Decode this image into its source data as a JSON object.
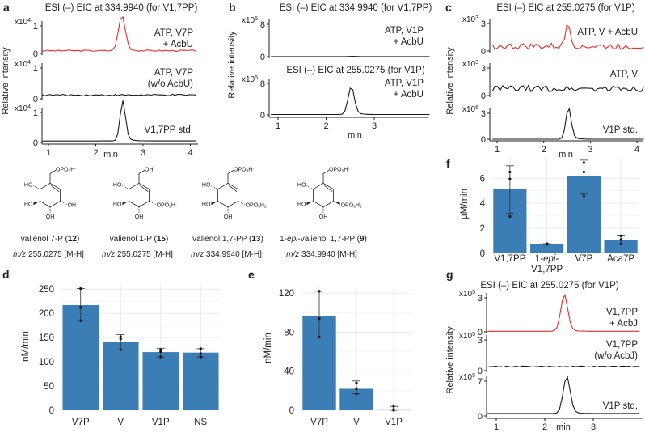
{
  "panel_labels": {
    "a": "a",
    "b": "b",
    "c": "c",
    "d": "d",
    "e": "e",
    "f": "f",
    "g": "g"
  },
  "structures": [
    {
      "name": [
        {
          "t": "valienol 7-P ("
        },
        {
          "t": "12",
          "b": true
        },
        {
          "t": ")"
        }
      ],
      "mz": [
        {
          "t": "m/z",
          "i": true
        },
        {
          "t": " 255.0275 [M-H]"
        },
        {
          "t": "–",
          "sup": true
        }
      ],
      "top": [
        {
          "t": "OPO"
        },
        {
          "t": "3",
          "sub": true
        },
        {
          "t": "H"
        },
        {
          "t": "-",
          "sup": true
        }
      ],
      "ul": [
        {
          "t": "HO"
        }
      ],
      "ll": [
        {
          "t": "HO"
        }
      ],
      "bottom": [
        {
          "t": "OH"
        }
      ],
      "lr": [
        {
          "t": "OH"
        }
      ],
      "lr_wedge": "hash"
    },
    {
      "name": [
        {
          "t": "valienol 1-P ("
        },
        {
          "t": "15",
          "b": true
        },
        {
          "t": ")"
        }
      ],
      "mz": [
        {
          "t": "m/z",
          "i": true
        },
        {
          "t": " 255.0275 [M-H]"
        },
        {
          "t": "–",
          "sup": true
        }
      ],
      "top": [
        {
          "t": "OH"
        }
      ],
      "ul": [
        {
          "t": "HO"
        }
      ],
      "ll": [
        {
          "t": "HO"
        }
      ],
      "bottom": [
        {
          "t": "OH"
        }
      ],
      "lr": [
        {
          "t": "OPO"
        },
        {
          "t": "3",
          "sub": true
        },
        {
          "t": "H"
        },
        {
          "t": "-",
          "sup": true
        }
      ],
      "lr_wedge": "hash"
    },
    {
      "name": [
        {
          "t": "valienol 1,7-PP ("
        },
        {
          "t": "13",
          "b": true
        },
        {
          "t": ")"
        }
      ],
      "mz": [
        {
          "t": "m/z",
          "i": true
        },
        {
          "t": " 334.9940 [M-H]"
        },
        {
          "t": "–",
          "sup": true
        }
      ],
      "top": [
        {
          "t": "OPO"
        },
        {
          "t": "3",
          "sub": true
        },
        {
          "t": "H"
        },
        {
          "t": "-",
          "sup": true
        }
      ],
      "ul": [
        {
          "t": "HO"
        }
      ],
      "ll": [
        {
          "t": "HO"
        }
      ],
      "bottom": [
        {
          "t": "OH"
        }
      ],
      "lr": [
        {
          "t": "OPO"
        },
        {
          "t": "3",
          "sub": true
        },
        {
          "t": "H"
        },
        {
          "t": "2",
          "sub": true
        }
      ],
      "lr_wedge": "hash"
    },
    {
      "name": [
        {
          "t": "1-"
        },
        {
          "t": "epi",
          "i": true
        },
        {
          "t": "-valienol 1,7-PP ("
        },
        {
          "t": "9",
          "b": true
        },
        {
          "t": ")"
        }
      ],
      "mz": [
        {
          "t": "m/z",
          "i": true
        },
        {
          "t": " 334.9940 [M-H]"
        },
        {
          "t": "–",
          "sup": true
        }
      ],
      "top": [
        {
          "t": "OPO"
        },
        {
          "t": "3",
          "sub": true
        },
        {
          "t": "H"
        },
        {
          "t": "-",
          "sup": true
        }
      ],
      "ul": [
        {
          "t": "HO"
        }
      ],
      "ll": [
        {
          "t": "HO"
        }
      ],
      "bottom": [
        {
          "t": "OH"
        }
      ],
      "lr": [
        {
          "t": "OPO"
        },
        {
          "t": "3",
          "sub": true
        },
        {
          "t": "H"
        },
        {
          "t": "2",
          "sub": true
        }
      ],
      "lr_wedge": "bold"
    }
  ],
  "colors": {
    "red": "#ee2a2a",
    "black": "#1a1a1a",
    "bar": "#3b7db5",
    "grid": "#ebebeb"
  },
  "chart_data": [
    {
      "panel": "a",
      "type": "line",
      "title": "ESI (–) EIC at 334.9940 (for V1,7PP)",
      "xlabel": "min",
      "ylabel": "Relative intensity",
      "xticks": [
        "1",
        "2",
        "3",
        "4"
      ],
      "xlim": [
        0.87,
        4.15
      ],
      "traces": [
        {
          "label": [
            "ATP, V7P",
            "+ AcbU"
          ],
          "color": "red",
          "scale": "x10",
          "exp": "4",
          "ytick": "1",
          "ytick_value": 1,
          "baseline": 0.1,
          "peak_rt": 2.55,
          "peak_height": 1.25,
          "peak_width": 0.1,
          "noise": 0.025
        },
        {
          "label": [
            "ATP, V7P",
            "(w/o AcbU)"
          ],
          "color": "black",
          "scale": "x10",
          "exp": "4",
          "ytick": "1",
          "ytick_value": 1,
          "baseline": 0.12,
          "peak_rt": 2.55,
          "peak_height": 0,
          "peak_width": 0.1,
          "noise": 0.025
        },
        {
          "label": [
            "V1,7PP std."
          ],
          "color": "black",
          "scale": "x10",
          "exp": "4",
          "ytick": "1",
          "ytick_value": 1,
          "baseline": 0.05,
          "peak_rt": 2.57,
          "peak_height": 1.3,
          "peak_width": 0.08,
          "noise": 0
        }
      ]
    },
    {
      "panel": "b",
      "type": "line",
      "xlabel": "min",
      "ylabel": "Relative intensity",
      "xticks": [
        "1",
        "2",
        "3"
      ],
      "xlim": [
        0.85,
        4.15
      ],
      "traces": [
        {
          "title": "ESI (–) EIC at 334.9940 (for V1,7PP)",
          "label": [
            "ATP, V1P",
            "+ AcbU"
          ],
          "color": "black",
          "scale": "x10",
          "exp": "5",
          "ytick": "8",
          "ytick_value": 8,
          "baseline": 0.02,
          "peak_rt": 2.55,
          "peak_height": 0.05,
          "peak_width": 0.1,
          "noise": 0
        },
        {
          "title": "ESI (–) EIC at 255.0275 (for V1P)",
          "label": [
            "ATP, V1P",
            "+ AcbU"
          ],
          "color": "black",
          "scale": "x10",
          "exp": "5",
          "ytick": "8",
          "ytick_value": 8,
          "baseline": 0.1,
          "peak_rt": 2.52,
          "peak_height": 7.0,
          "peak_width": 0.09,
          "noise": 0
        }
      ]
    },
    {
      "panel": "c",
      "type": "line",
      "title": "ESI (–) EIC at 255.0275 (for V1P)",
      "xlabel": "min",
      "ylabel": "Relative intensity",
      "xticks": [
        "1",
        "2",
        "3",
        "4"
      ],
      "xlim": [
        0.9,
        4.15
      ],
      "traces": [
        {
          "label": [
            "ATP, V + AcbU"
          ],
          "color": "red",
          "scale": "x10",
          "exp": "3",
          "ytick": "3",
          "ytick_value": 3,
          "baseline": 0.5,
          "peak_rt": 2.52,
          "peak_height": 2.7,
          "peak_width": 0.07,
          "noise": 0.35
        },
        {
          "label": [
            "ATP, V"
          ],
          "color": "black",
          "scale": "x10",
          "exp": "3",
          "ytick": "3",
          "ytick_value": 3,
          "baseline": 0.75,
          "peak_rt": 2.52,
          "peak_height": 0,
          "peak_width": 0.07,
          "noise": 0.35
        },
        {
          "label": [
            "V1P std."
          ],
          "color": "black",
          "scale": "x10",
          "exp": "6",
          "ytick": "3",
          "ytick_value": 3,
          "baseline": 0.0,
          "peak_rt": 2.53,
          "peak_height": 3.6,
          "peak_width": 0.08,
          "noise": 0
        }
      ]
    },
    {
      "panel": "d",
      "type": "bar",
      "ylabel": "nM/min",
      "yticks": [
        "0",
        "50",
        "100",
        "150",
        "200",
        "250"
      ],
      "ytick_values": [
        0,
        50,
        100,
        150,
        200,
        250
      ],
      "ylim": [
        0,
        262
      ],
      "categories": [
        [
          [
            {
              "t": "V7P"
            }
          ]
        ],
        [
          [
            {
              "t": "V"
            }
          ]
        ],
        [
          [
            {
              "t": "V1P"
            }
          ]
        ],
        [
          [
            {
              "t": "NS"
            }
          ]
        ]
      ],
      "values": [
        217,
        141,
        120,
        119
      ],
      "err": [
        [
          185,
          251
        ],
        [
          125,
          156
        ],
        [
          110,
          128
        ],
        [
          110,
          127
        ]
      ],
      "points": [
        [
          185,
          212,
          251
        ],
        [
          125,
          147,
          152
        ],
        [
          110,
          121,
          125
        ],
        [
          110,
          117,
          127
        ]
      ]
    },
    {
      "panel": "e",
      "type": "bar",
      "ylabel": "nM/min",
      "yticks": [
        "0",
        "40",
        "80",
        "120"
      ],
      "ytick_values": [
        0,
        40,
        80,
        120
      ],
      "ylim": [
        0,
        126
      ],
      "categories": [
        [
          [
            {
              "t": "V7P"
            }
          ]
        ],
        [
          [
            {
              "t": "V"
            }
          ]
        ],
        [
          [
            {
              "t": "V1P"
            }
          ]
        ]
      ],
      "values": [
        97,
        22,
        1
      ],
      "err": [
        [
          75,
          122
        ],
        [
          17,
          30
        ],
        [
          0,
          4
        ]
      ],
      "points": [
        [
          75,
          94,
          122
        ],
        [
          17,
          22,
          28
        ],
        [
          0,
          1,
          4
        ]
      ]
    },
    {
      "panel": "f",
      "type": "bar",
      "ylabel": "μM/min",
      "yticks": [
        "0",
        "2",
        "4",
        "6"
      ],
      "ytick_values": [
        0,
        2,
        4,
        6
      ],
      "ylim": [
        0,
        7.7
      ],
      "categories": [
        [
          [
            {
              "t": "V1,7PP"
            }
          ]
        ],
        [
          [
            {
              "t": "1-"
            },
            {
              "t": "epi",
              "i": true
            },
            {
              "t": "-"
            }
          ],
          [
            {
              "t": "V1,7PP"
            }
          ]
        ],
        [
          [
            {
              "t": "V7P"
            }
          ]
        ],
        [
          [
            {
              "t": "Aca7P"
            }
          ]
        ]
      ],
      "values": [
        5.15,
        0.75,
        6.15,
        1.1
      ],
      "err": [
        [
          3.2,
          7.0
        ],
        [
          0.72,
          0.78
        ],
        [
          4.75,
          7.45
        ],
        [
          0.75,
          1.45
        ]
      ],
      "points": [
        [
          2.95,
          5.95,
          6.5
        ],
        [
          0.72,
          0.75,
          0.78
        ],
        [
          4.6,
          6.5,
          7.25
        ],
        [
          0.75,
          1.1,
          1.4
        ]
      ]
    },
    {
      "panel": "g",
      "type": "line",
      "title": "ESI (–) EIC at 255.0275 (for V1P)",
      "xlabel": "min",
      "ylabel": "Relative intensity",
      "xticks": [
        "1",
        "2",
        "3"
      ],
      "xlim": [
        0.82,
        4.0
      ],
      "traces": [
        {
          "label": [
            "V1,7PP",
            "+ AcbJ"
          ],
          "color": "red",
          "scale": "x10",
          "exp": "5",
          "ytick": "3",
          "ytick_value": 3,
          "baseline": 0.05,
          "peak_rt": 2.4,
          "peak_height": 3.15,
          "peak_width": 0.1,
          "noise": 0
        },
        {
          "label": [
            "V1,7PP",
            "(w/o AcbJ)"
          ],
          "color": "black",
          "scale": "x10",
          "exp": "5",
          "ytick": "3",
          "ytick_value": 3,
          "baseline": 0.4,
          "peak_rt": 2.4,
          "peak_height": 0,
          "peak_width": 0.1,
          "noise": 0.05
        },
        {
          "label": [
            "V1P std."
          ],
          "color": "black",
          "scale": "x10",
          "exp": "5",
          "ytick": "7",
          "ytick_value": 7,
          "baseline": 0.5,
          "peak_rt": 2.45,
          "peak_height": 7.3,
          "peak_width": 0.1,
          "noise": 0
        }
      ]
    }
  ]
}
